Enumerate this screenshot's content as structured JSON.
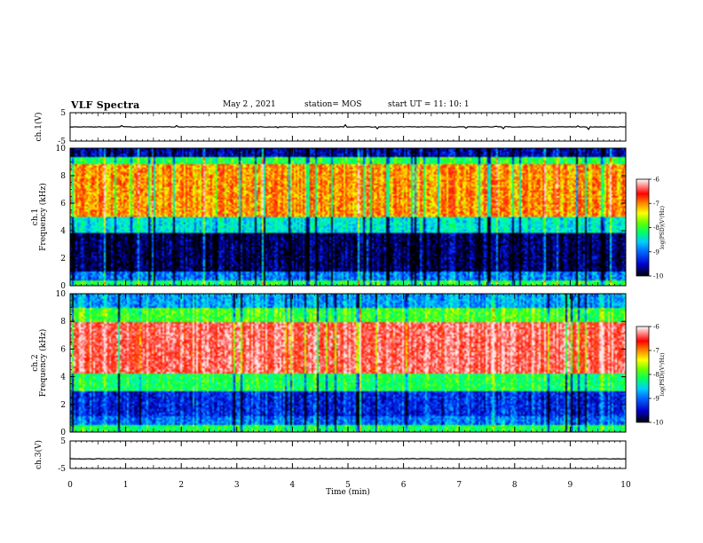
{
  "header": {
    "title": "VLF Spectra",
    "date": "May 2 , 2021",
    "station": "station= MOS",
    "start": "start  UT =   11: 10: 1"
  },
  "colors": {
    "spectrum_ramp": [
      "#000000",
      "#0000aa",
      "#0000ff",
      "#00aaff",
      "#00ffff",
      "#00ff66",
      "#66ff00",
      "#ffff00",
      "#ff8800",
      "#ff0000",
      "#ffb0b0"
    ],
    "trace": "#000000",
    "axis": "#000000"
  },
  "chart_data": [
    {
      "type": "line",
      "name": "ch1-waveform",
      "ylabel": "ch.1(V)",
      "yticks": [
        "5",
        "-5"
      ],
      "ylim": [
        -5,
        5
      ],
      "xlim": [
        0,
        10
      ],
      "level": 0,
      "note": "flat trace near 0 V with small spikes"
    },
    {
      "type": "heatmap",
      "name": "ch1-spectrogram",
      "ylabel": "ch.1\nFrequency (kHz)",
      "yticks": [
        "0",
        "2",
        "4",
        "6",
        "8",
        "10"
      ],
      "ylim": [
        0,
        10
      ],
      "xlim": [
        0,
        10
      ],
      "bands": [
        {
          "from": 0.0,
          "to": 0.4,
          "level": -8.0
        },
        {
          "from": 0.4,
          "to": 1.0,
          "level": -9.0
        },
        {
          "from": 1.0,
          "to": 3.8,
          "level": -9.8
        },
        {
          "from": 3.8,
          "to": 5.0,
          "level": -8.5
        },
        {
          "from": 5.0,
          "to": 8.8,
          "level": -7.0
        },
        {
          "from": 8.8,
          "to": 9.4,
          "level": -8.0
        },
        {
          "from": 9.4,
          "to": 10.0,
          "level": -9.6
        }
      ],
      "colorbar": {
        "label": "log(PSD)(V²/Hz)",
        "ticks": [
          "-6",
          "-7",
          "-8",
          "-9",
          "-10"
        ],
        "range": [
          -10,
          -6
        ]
      }
    },
    {
      "type": "heatmap",
      "name": "ch2-spectrogram",
      "ylabel": "ch.2\nFrequency (kHz)",
      "yticks": [
        "0",
        "2",
        "4",
        "6",
        "8",
        "10"
      ],
      "ylim": [
        0,
        10
      ],
      "xlim": [
        0,
        10
      ],
      "bands": [
        {
          "from": 0.0,
          "to": 0.5,
          "level": -8.0
        },
        {
          "from": 0.5,
          "to": 1.2,
          "level": -9.0
        },
        {
          "from": 1.2,
          "to": 3.0,
          "level": -9.3
        },
        {
          "from": 3.0,
          "to": 4.2,
          "level": -8.0
        },
        {
          "from": 4.2,
          "to": 8.0,
          "level": -6.3
        },
        {
          "from": 8.0,
          "to": 9.0,
          "level": -7.8
        },
        {
          "from": 9.0,
          "to": 10.0,
          "level": -8.8
        }
      ],
      "colorbar": {
        "label": "log(PSD)(V²/Hz)",
        "ticks": [
          "-6",
          "-7",
          "-8",
          "-9",
          "-10"
        ],
        "range": [
          -10,
          -6
        ]
      }
    },
    {
      "type": "line",
      "name": "ch3-waveform",
      "ylabel": "ch.3(V)",
      "yticks": [
        "5",
        "-5"
      ],
      "ylim": [
        -5,
        5
      ],
      "xlim": [
        0,
        10
      ],
      "level": -1.5,
      "note": "flat trace"
    }
  ],
  "xaxis": {
    "label": "Time (min)",
    "ticks": [
      "0",
      "1",
      "2",
      "3",
      "4",
      "5",
      "6",
      "7",
      "8",
      "9",
      "10"
    ],
    "range": [
      0,
      10
    ]
  }
}
